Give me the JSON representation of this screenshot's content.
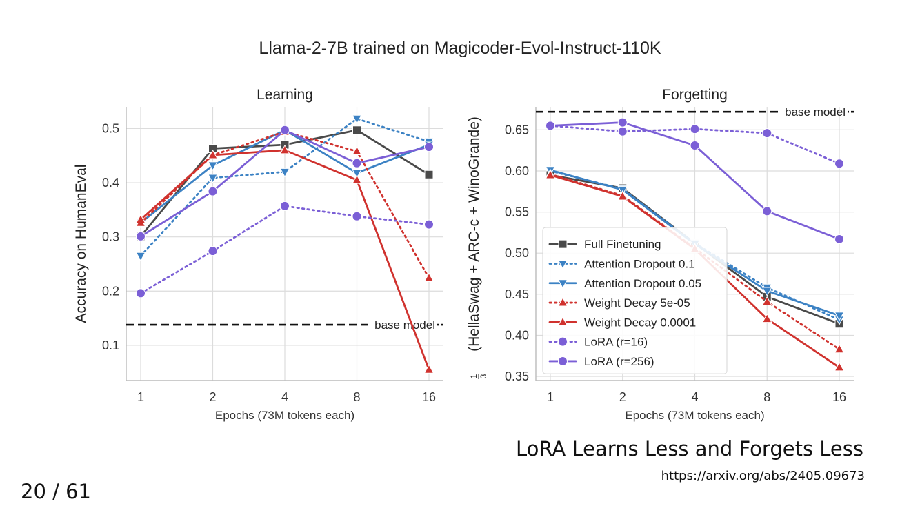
{
  "slide": {
    "suptitle": "Llama-2-7B trained on Magicoder-Evol-Instruct-110K",
    "paper_title": "LoRA Learns Less and Forgets Less",
    "paper_url": "https://arxiv.org/abs/2405.09673",
    "page_number": "20 / 61"
  },
  "chart_data": [
    {
      "type": "line",
      "title": "Learning",
      "xlabel": "Epochs (73M tokens each)",
      "ylabel": "Accuracy on HumanEval",
      "categories": [
        "1",
        "2",
        "4",
        "8",
        "16"
      ],
      "ylim": [
        0.035,
        0.54
      ],
      "yticks": [
        0.1,
        0.2,
        0.3,
        0.4,
        0.5
      ],
      "ytick_labels": [
        "0.1",
        "0.2",
        "0.3",
        "0.4",
        "0.5"
      ],
      "grid": true,
      "baseline": {
        "label": "base model",
        "value": 0.138
      },
      "series": [
        {
          "name": "Full Finetuning",
          "color": "#4a4a4a",
          "dash": "solid",
          "marker": "square",
          "values": [
            0.301,
            0.463,
            0.47,
            0.497,
            0.415
          ]
        },
        {
          "name": "Attention Dropout 0.1",
          "color": "#3c82c4",
          "dash": "dotted",
          "marker": "triangle-down",
          "values": [
            0.265,
            0.409,
            0.42,
            0.518,
            0.476
          ]
        },
        {
          "name": "Attention Dropout 0.05",
          "color": "#3c82c4",
          "dash": "solid",
          "marker": "triangle-down",
          "values": [
            0.326,
            0.432,
            0.497,
            0.418,
            0.47
          ]
        },
        {
          "name": "Weight Decay 5e-05",
          "color": "#d0322e",
          "dash": "dotted",
          "marker": "triangle-up",
          "values": [
            0.326,
            0.451,
            0.494,
            0.458,
            0.224
          ]
        },
        {
          "name": "Weight Decay 0.0001",
          "color": "#d0322e",
          "dash": "solid",
          "marker": "triangle-up",
          "values": [
            0.332,
            0.451,
            0.46,
            0.405,
            0.055
          ]
        },
        {
          "name": "LoRA (r=16)",
          "color": "#7b5fd6",
          "dash": "dotted",
          "marker": "circle",
          "values": [
            0.196,
            0.274,
            0.357,
            0.338,
            0.323
          ]
        },
        {
          "name": "LoRA (r=256)",
          "color": "#7b5fd6",
          "dash": "solid",
          "marker": "circle",
          "values": [
            0.301,
            0.384,
            0.497,
            0.436,
            0.466
          ]
        }
      ]
    },
    {
      "type": "line",
      "title": "Forgetting",
      "xlabel": "Epochs (73M tokens each)",
      "ylabel_frac_num": "1",
      "ylabel_frac_den": "3",
      "ylabel": "(HellaSwag + ARC-c + WinoGrande)",
      "categories": [
        "1",
        "2",
        "4",
        "8",
        "16"
      ],
      "ylim": [
        0.345,
        0.678
      ],
      "yticks": [
        0.35,
        0.4,
        0.45,
        0.5,
        0.55,
        0.6,
        0.65
      ],
      "ytick_labels": [
        "0.35",
        "0.40",
        "0.45",
        "0.50",
        "0.55",
        "0.60",
        "0.65"
      ],
      "grid": true,
      "legend": "center-left",
      "baseline": {
        "label": "base model",
        "value": 0.672
      },
      "series": [
        {
          "name": "Full Finetuning",
          "color": "#4a4a4a",
          "dash": "solid",
          "marker": "square",
          "values": [
            0.595,
            0.579,
            0.512,
            0.447,
            0.414
          ]
        },
        {
          "name": "Attention Dropout 0.1",
          "color": "#3c82c4",
          "dash": "dotted",
          "marker": "triangle-down",
          "values": [
            0.6,
            0.578,
            0.512,
            0.458,
            0.419
          ]
        },
        {
          "name": "Attention Dropout 0.05",
          "color": "#3c82c4",
          "dash": "solid",
          "marker": "triangle-down",
          "values": [
            0.601,
            0.577,
            0.511,
            0.454,
            0.424
          ]
        },
        {
          "name": "Weight Decay 5e-05",
          "color": "#d0322e",
          "dash": "dotted",
          "marker": "triangle-up",
          "values": [
            0.596,
            0.57,
            0.506,
            0.441,
            0.383
          ]
        },
        {
          "name": "Weight Decay 0.0001",
          "color": "#d0322e",
          "dash": "solid",
          "marker": "triangle-up",
          "values": [
            0.595,
            0.569,
            0.505,
            0.42,
            0.361
          ]
        },
        {
          "name": "LoRA (r=16)",
          "color": "#7b5fd6",
          "dash": "dotted",
          "marker": "circle",
          "values": [
            0.655,
            0.648,
            0.651,
            0.646,
            0.609
          ]
        },
        {
          "name": "LoRA (r=256)",
          "color": "#7b5fd6",
          "dash": "solid",
          "marker": "circle",
          "values": [
            0.655,
            0.659,
            0.631,
            0.551,
            0.517
          ]
        }
      ]
    }
  ]
}
